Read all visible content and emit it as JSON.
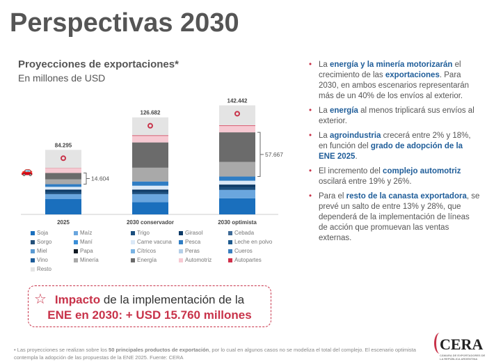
{
  "title": "Perspectivas 2030",
  "chart_data": {
    "type": "bar",
    "title": "Proyecciones de exportaciones*",
    "subtitle": "En millones de USD",
    "categories": [
      "2025",
      "2030 conservador",
      "2030 optimista"
    ],
    "totals": [
      "84.295",
      "126.682",
      "142.442"
    ],
    "total_values": [
      84295,
      126682,
      142442
    ],
    "brackets": [
      {
        "bar": 0,
        "label": "14.604",
        "value": 14604
      },
      {
        "bar": 2,
        "label": "57.667",
        "value": 57667
      }
    ],
    "series": [
      {
        "name": "Soja",
        "color": "#1a6fbd",
        "values": [
          20000,
          16000,
          21000
        ]
      },
      {
        "name": "Maíz",
        "color": "#6aa6de",
        "values": [
          6500,
          10500,
          11000
        ]
      },
      {
        "name": "Trigo",
        "color": "#1c4f7e",
        "values": [
          3000,
          3000,
          3500
        ]
      },
      {
        "name": "Girasol",
        "color": "#0d3a66",
        "values": [
          3000,
          3000,
          3500
        ]
      },
      {
        "name": "Carne vacuna",
        "color": "#dbe9f7",
        "values": [
          3500,
          5000,
          5000
        ]
      },
      {
        "name": "Pesca",
        "color": "#2f7dc4",
        "values": [
          3500,
          5500,
          5500
        ]
      },
      {
        "name": "Minería",
        "color": "#a9a9a9",
        "values": [
          6300,
          18000,
          19000
        ]
      },
      {
        "name": "Energía",
        "color": "#6b6b6b",
        "values": [
          8300,
          33000,
          38700
        ]
      },
      {
        "name": "Automotriz",
        "color": "#f6c9d2",
        "values": [
          6000,
          8500,
          8500
        ]
      },
      {
        "name": "Autopartes",
        "color": "#d0304a",
        "values": [
          300,
          700,
          700
        ]
      },
      {
        "name": "Resto",
        "color": "#e4e4e4",
        "values": [
          23900,
          23500,
          26000
        ]
      }
    ],
    "ylim": [
      0,
      150000
    ],
    "legend": [
      {
        "name": "Soja",
        "color": "#1a6fbd"
      },
      {
        "name": "Maíz",
        "color": "#6aa6de"
      },
      {
        "name": "Trigo",
        "color": "#1c4f7e"
      },
      {
        "name": "Girasol",
        "color": "#0d3a66"
      },
      {
        "name": "Cebada",
        "color": "#3e6a96"
      },
      {
        "name": "Sorgo",
        "color": "#24507a"
      },
      {
        "name": "Maní",
        "color": "#3b8fd8"
      },
      {
        "name": "Carne vacuna",
        "color": "#dbe9f7"
      },
      {
        "name": "Pesca",
        "color": "#2f7dc4"
      },
      {
        "name": "Leche en polvo",
        "color": "#1e5a8e"
      },
      {
        "name": "Miel",
        "color": "#5a9ad2"
      },
      {
        "name": "Papa",
        "color": "#111a24"
      },
      {
        "name": "Cítricos",
        "color": "#79b3e3"
      },
      {
        "name": "Peras",
        "color": "#b5cfe8"
      },
      {
        "name": "Cueros",
        "color": "#3a7fbf"
      },
      {
        "name": "Vino",
        "color": "#1d5c99"
      },
      {
        "name": "Minería",
        "color": "#a9a9a9"
      },
      {
        "name": "Energía",
        "color": "#6b6b6b"
      },
      {
        "name": "Automotriz",
        "color": "#f6c9d2"
      },
      {
        "name": "Autopartes",
        "color": "#d0304a"
      },
      {
        "name": "Resto",
        "color": "#e4e4e4"
      }
    ]
  },
  "impact": {
    "p1": "Impacto",
    "p2": " de la implementación de la",
    "line2": "ENE en 2030: + USD 15.760 millones"
  },
  "bullets": [
    [
      "La ",
      "energía y la minería motorizarán",
      " el crecimiento de las ",
      "exportaciones",
      ". Para 2030, en ambos escenarios representarán más de un 40% de los envíos al exterior."
    ],
    [
      "La ",
      "energía",
      " al menos triplicará sus envíos al exterior.",
      "",
      ""
    ],
    [
      "La ",
      "agroindustria",
      " crecerá entre 2% y 18%, en función del ",
      "grado de adopción de la ENE 2025",
      "."
    ],
    [
      "El incremento del ",
      "complejo automotriz",
      " oscilará entre 19% y 26%.",
      "",
      ""
    ],
    [
      "Para el ",
      "resto de la canasta exportadora",
      ", se prevé un salto de entre 13% y 28%, que dependerá de la implementación de líneas de acción que promuevan las ventas externas.",
      "",
      ""
    ]
  ],
  "footnote": {
    "a": "• Las proyecciones se realizan sobre los ",
    "b": "50 principales productos de exportación",
    "c": ", por lo cual en algunos casos no se modeliza el total del complejo. El escenario optimista contempla la adopción de las propuestas de la ENE 2025. Fuente: CERA"
  },
  "logo": {
    "name": "CERA",
    "tagline": "CÁMARA DE EXPORTADORES DE LA REPÚBLICA ARGENTINA"
  }
}
